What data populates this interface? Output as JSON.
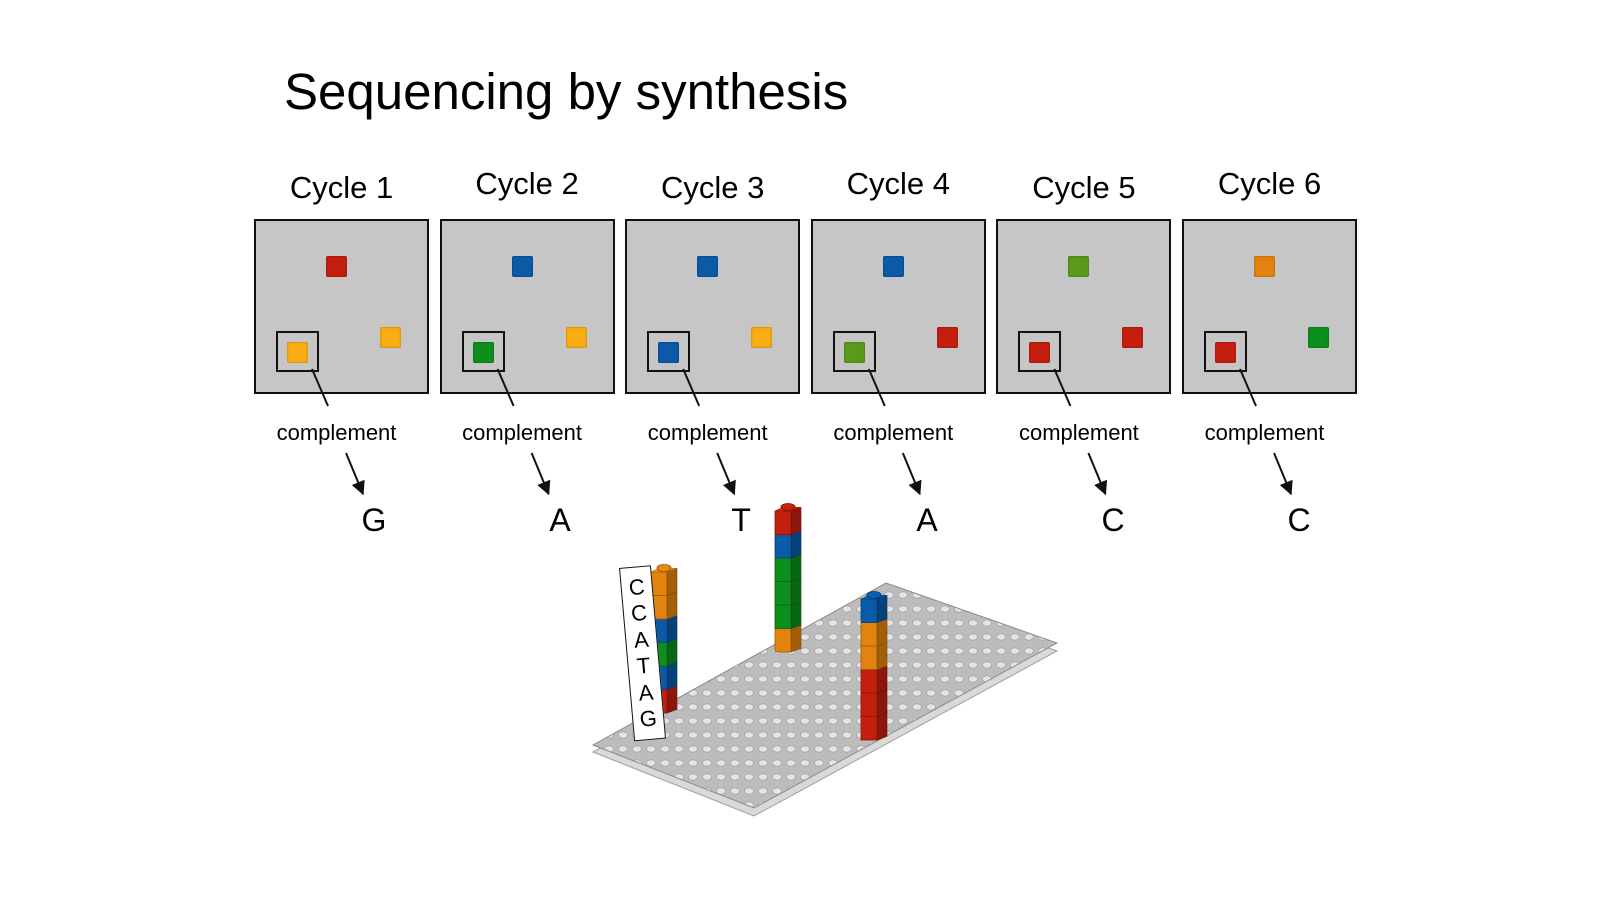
{
  "title": "Sequencing by synthesis",
  "colors": {
    "panel_bg": "#c6c6c6",
    "red": "#c41e0e",
    "blue": "#0a5aa8",
    "yellow": "#f9ad12",
    "green": "#0c8f1c",
    "olive": "#5a9a1a",
    "orange": "#e2830d",
    "baseplate": "#b9b9b9"
  },
  "cycles": [
    {
      "label": "Cycle 1",
      "spots": {
        "top": "red",
        "right": "yellow",
        "selected": "yellow"
      },
      "complement_label": "complement",
      "base": "G"
    },
    {
      "label": "Cycle 2",
      "spots": {
        "top": "blue",
        "right": "yellow",
        "selected": "green"
      },
      "complement_label": "complement",
      "base": "A"
    },
    {
      "label": "Cycle 3",
      "spots": {
        "top": "blue",
        "right": "yellow",
        "selected": "blue"
      },
      "complement_label": "complement",
      "base": "T"
    },
    {
      "label": "Cycle 4",
      "spots": {
        "top": "blue",
        "right": "red",
        "selected": "olive"
      },
      "complement_label": "complement",
      "base": "A"
    },
    {
      "label": "Cycle 5",
      "spots": {
        "top": "olive",
        "right": "red",
        "selected": "red"
      },
      "complement_label": "complement",
      "base": "C"
    },
    {
      "label": "Cycle 6",
      "spots": {
        "top": "orange",
        "right": "green",
        "selected": "red"
      },
      "complement_label": "complement",
      "base": "C"
    }
  ],
  "sequence_tag": {
    "letters": [
      "C",
      "C",
      "A",
      "T",
      "A",
      "G"
    ]
  },
  "stacks": [
    {
      "colors_bottom_to_top": [
        "red",
        "blue",
        "green",
        "blue",
        "orange",
        "orange"
      ]
    },
    {
      "colors_bottom_to_top": [
        "orange",
        "green",
        "green",
        "green",
        "blue",
        "red"
      ]
    },
    {
      "colors_bottom_to_top": [
        "red",
        "red",
        "red",
        "orange",
        "orange",
        "blue"
      ]
    }
  ]
}
